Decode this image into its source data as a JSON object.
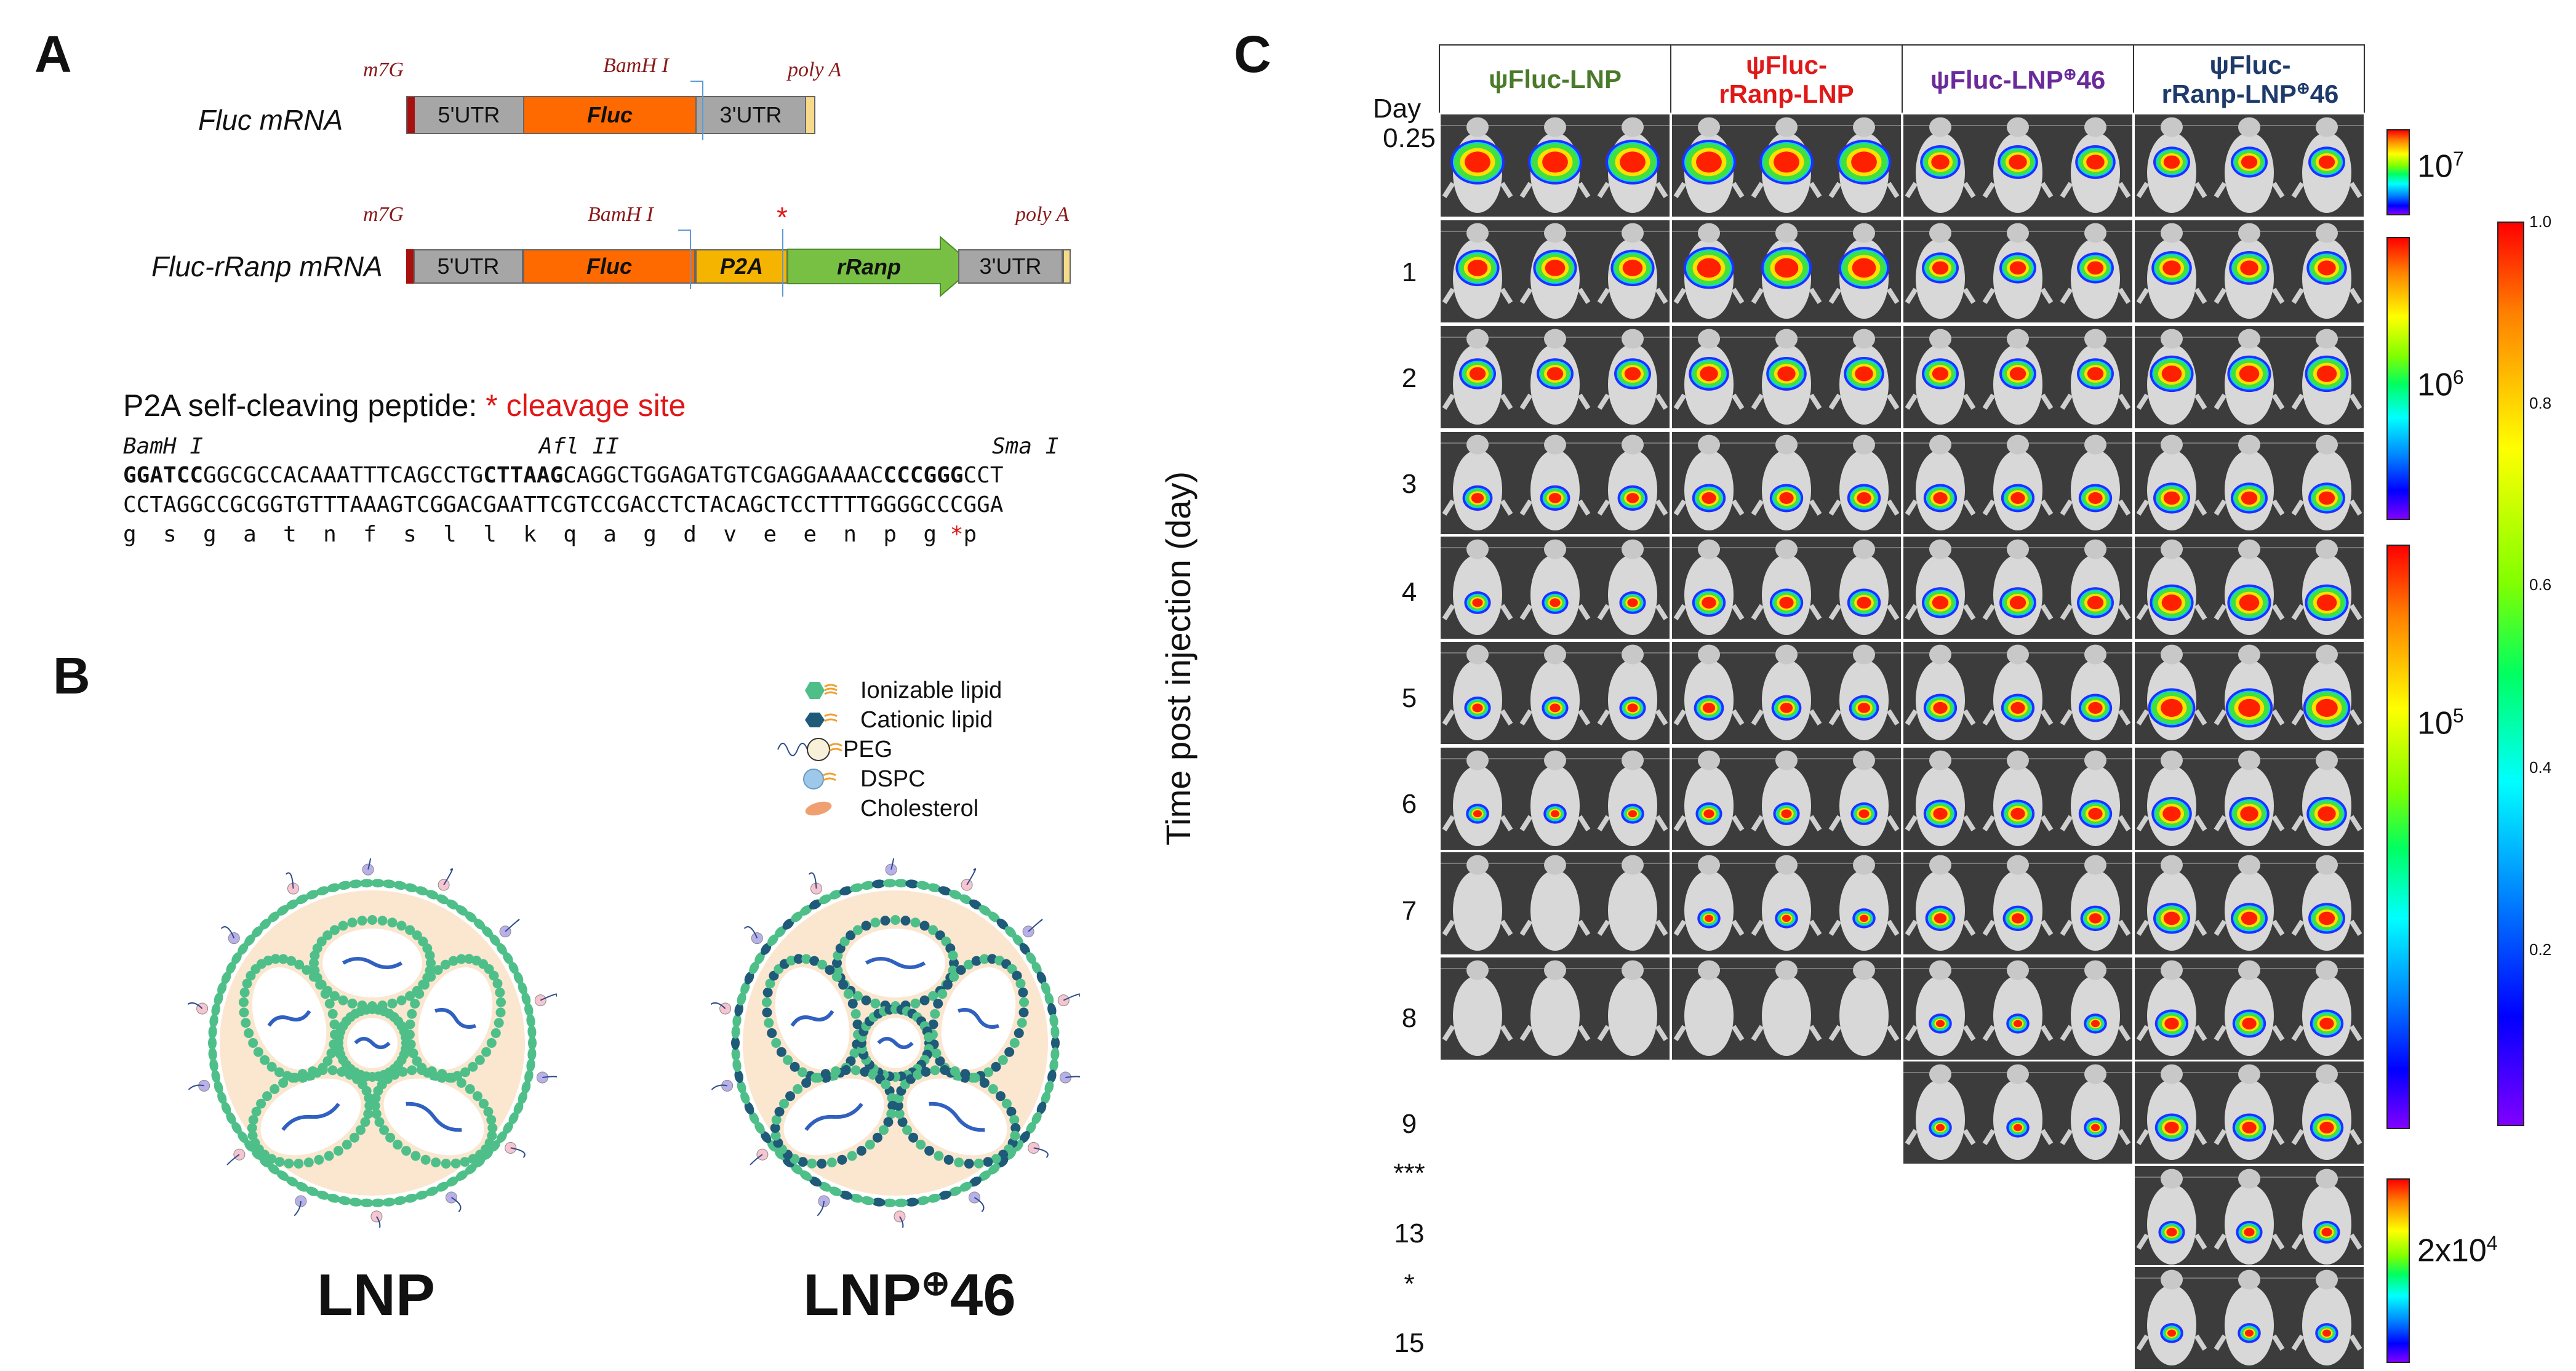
{
  "panels": {
    "a": "A",
    "b": "B",
    "c": "C"
  },
  "panelA": {
    "constructs": [
      {
        "name": "Fluc mRNA",
        "mark_m7g": "m7G",
        "mark_bamh": "BamH I",
        "mark_polya": "poly A",
        "segments": [
          "5'UTR",
          "Fluc",
          "3'UTR"
        ]
      },
      {
        "name": "Fluc-rRanp mRNA",
        "mark_m7g": "m7G",
        "mark_bamh": "BamH I",
        "mark_polya": "poly A",
        "mark_star": "*",
        "segments": [
          "5'UTR",
          "Fluc",
          "P2A",
          "rRanp",
          "3'UTR"
        ]
      }
    ],
    "p2a_title": "P2A self-cleaving peptide: ",
    "p2a_cleavage": "* cleavage site",
    "enzymes": [
      "BamH I",
      "Afl II",
      "Sma I"
    ],
    "seq_line1": {
      "bamh": "GGATCC",
      "mid1": "GGCGCCACAAATTTCAGCCTG",
      "afl": "CTTAAG",
      "mid2": "CAGGCTGGAGATGTCGAGGAAAAC",
      "sma": "CCCGGG",
      "end": "CCT"
    },
    "seq_line2": "CCTAGGCCGCGGTGTTTAAAGTCGGACGAATTCGTCCGACCTCTACAGCTCCTTTTGGGGCCCGGA",
    "seq_line3": "g  s  g  a  t  n  f  s  l  l  k  q  a  g  d  v  e  e  n  p  g ",
    "seq_line3_star": "*",
    "seq_line3_end": "p"
  },
  "panelB": {
    "legend": [
      "Ionizable lipid",
      "Cationic lipid",
      "PEG",
      "DSPC",
      "Cholesterol"
    ],
    "labels": {
      "lnp": "LNP",
      "lnp46_base": "LNP",
      "lnp46_sup": "⊕",
      "lnp46_num": "46"
    }
  },
  "panelC": {
    "columns": [
      {
        "line1": "ψFluc-LNP",
        "line2": "",
        "color": "#4a7a2a"
      },
      {
        "line1": "ψFluc-",
        "line2": "rRanp-LNP",
        "color": "#e01818"
      },
      {
        "line1": "ψFluc-LNP",
        "sup": "⊕",
        "line1_end": "46",
        "line2": "",
        "color": "#6a2a9a"
      },
      {
        "line1": "ψFluc-",
        "line2_base": "rRanp-LNP",
        "sup": "⊕",
        "line2_end": "46",
        "color": "#1e3a6a"
      }
    ],
    "y_axis_label": "Time post injection (day)",
    "day_label": "Day",
    "rows": [
      "0.25",
      "1",
      "2",
      "3",
      "4",
      "5",
      "6",
      "7",
      "8",
      "9",
      "***",
      "13",
      "*",
      "15"
    ],
    "scales": [
      "10",
      "10",
      "10",
      "2x10"
    ],
    "scale_exps": [
      "7",
      "6",
      "5",
      "4"
    ],
    "bar_ticks": [
      "1.0",
      "0.8",
      "0.6",
      "0.4",
      "0.2"
    ],
    "colors": {
      "red": "#e01818",
      "green": "#4a7a2a",
      "purple": "#6a2a9a",
      "navy": "#1e3a6a",
      "orange_seg": "#ff6a00",
      "p2a": "#f4b400",
      "rranp": "#77c043",
      "utr": "#a6a6a6"
    }
  }
}
